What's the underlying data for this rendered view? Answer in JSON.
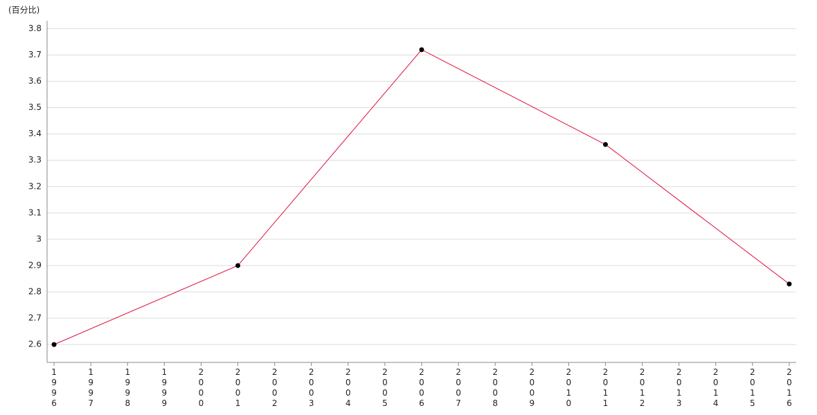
{
  "chart_data": {
    "type": "line",
    "y_label": "(百分比)",
    "x": [
      1996,
      2001,
      2006,
      2011,
      2016
    ],
    "values": [
      2.6,
      2.9,
      3.72,
      3.36,
      2.83
    ],
    "color": "#e0103c",
    "marker_color": "#000000",
    "xlim": [
      1995.81,
      2016.19
    ],
    "xticks": [
      1996,
      1997,
      1998,
      1999,
      2000,
      2001,
      2002,
      2003,
      2004,
      2005,
      2006,
      2007,
      2008,
      2009,
      2010,
      2011,
      2012,
      2013,
      2014,
      2015,
      2016
    ],
    "ylim": [
      2.532,
      3.83
    ],
    "yticks": [
      2.6,
      2.7,
      2.8,
      2.9,
      3,
      3.1,
      3.2,
      3.3,
      3.4,
      3.5,
      3.6,
      3.7,
      3.8
    ],
    "grid": true
  }
}
